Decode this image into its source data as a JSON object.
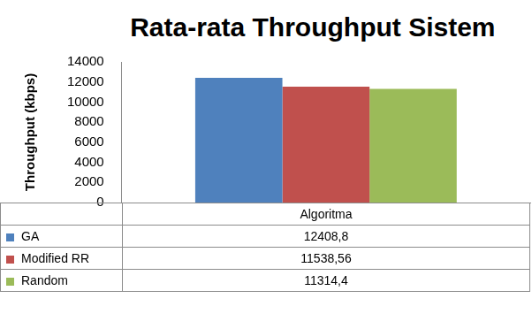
{
  "chart_data": {
    "type": "bar",
    "title": "Rata-rata Throughput Sistem",
    "y_label": "Throughput (kbps)",
    "categories": [
      "Algoritma"
    ],
    "series": [
      {
        "name": "GA",
        "color": "#4f81bd",
        "values": [
          12408.8
        ],
        "value_labels": [
          "12408,8"
        ]
      },
      {
        "name": "Modified RR",
        "color": "#c0504d",
        "values": [
          11538.56
        ],
        "value_labels": [
          "11538,56"
        ]
      },
      {
        "name": "Random",
        "color": "#9bbb59",
        "values": [
          11314.4
        ],
        "value_labels": [
          "11314,4"
        ]
      }
    ],
    "ylim": [
      0,
      14000
    ],
    "yticks": [
      0,
      2000,
      4000,
      6000,
      8000,
      10000,
      12000,
      14000
    ],
    "grid": false
  }
}
